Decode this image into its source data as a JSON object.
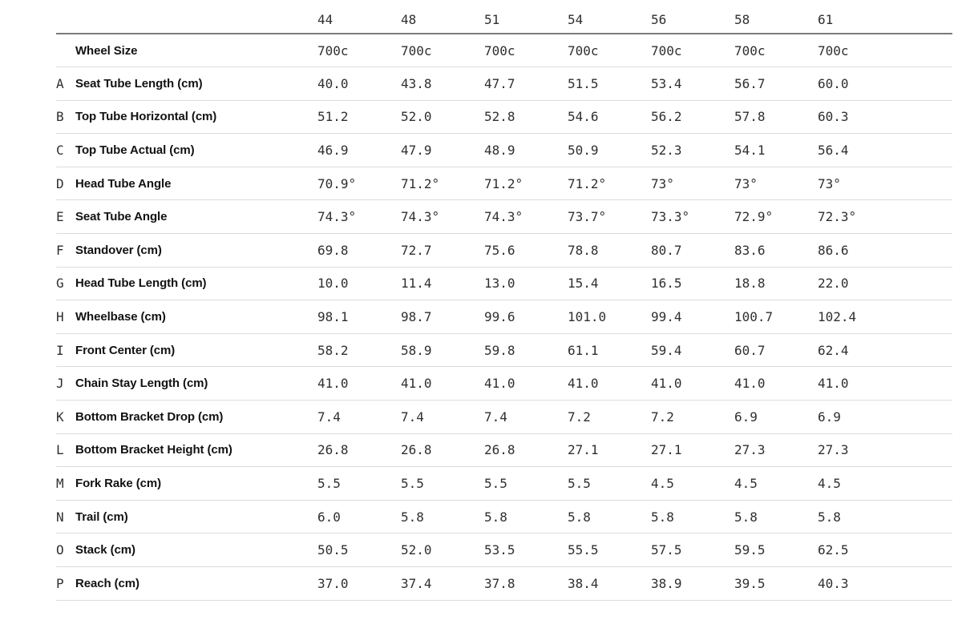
{
  "table": {
    "sizes": [
      "44",
      "48",
      "51",
      "54",
      "56",
      "58",
      "61"
    ],
    "rows": [
      {
        "letter": "",
        "label": "Wheel Size",
        "values": [
          "700c",
          "700c",
          "700c",
          "700c",
          "700c",
          "700c",
          "700c"
        ]
      },
      {
        "letter": "A",
        "label": "Seat Tube Length (cm)",
        "values": [
          "40.0",
          "43.8",
          "47.7",
          "51.5",
          "53.4",
          "56.7",
          "60.0"
        ]
      },
      {
        "letter": "B",
        "label": "Top Tube Horizontal (cm)",
        "values": [
          "51.2",
          "52.0",
          "52.8",
          "54.6",
          "56.2",
          "57.8",
          "60.3"
        ]
      },
      {
        "letter": "C",
        "label": "Top Tube Actual (cm)",
        "values": [
          "46.9",
          "47.9",
          "48.9",
          "50.9",
          "52.3",
          "54.1",
          "56.4"
        ]
      },
      {
        "letter": "D",
        "label": "Head Tube Angle",
        "values": [
          "70.9°",
          "71.2°",
          "71.2°",
          "71.2°",
          "73°",
          "73°",
          "73°"
        ]
      },
      {
        "letter": "E",
        "label": "Seat Tube Angle",
        "values": [
          "74.3°",
          "74.3°",
          "74.3°",
          "73.7°",
          "73.3°",
          "72.9°",
          "72.3°"
        ]
      },
      {
        "letter": "F",
        "label": "Standover (cm)",
        "values": [
          "69.8",
          "72.7",
          "75.6",
          "78.8",
          "80.7",
          "83.6",
          "86.6"
        ]
      },
      {
        "letter": "G",
        "label": "Head Tube Length (cm)",
        "values": [
          "10.0",
          "11.4",
          "13.0",
          "15.4",
          "16.5",
          "18.8",
          "22.0"
        ]
      },
      {
        "letter": "H",
        "label": "Wheelbase (cm)",
        "values": [
          "98.1",
          "98.7",
          "99.6",
          "101.0",
          "99.4",
          "100.7",
          "102.4"
        ]
      },
      {
        "letter": "I",
        "label": "Front Center (cm)",
        "values": [
          "58.2",
          "58.9",
          "59.8",
          "61.1",
          "59.4",
          "60.7",
          "62.4"
        ]
      },
      {
        "letter": "J",
        "label": "Chain Stay Length (cm)",
        "values": [
          "41.0",
          "41.0",
          "41.0",
          "41.0",
          "41.0",
          "41.0",
          "41.0"
        ]
      },
      {
        "letter": "K",
        "label": "Bottom Bracket Drop (cm)",
        "values": [
          "7.4",
          "7.4",
          "7.4",
          "7.2",
          "7.2",
          "6.9",
          "6.9"
        ]
      },
      {
        "letter": "L",
        "label": "Bottom Bracket Height (cm)",
        "values": [
          "26.8",
          "26.8",
          "26.8",
          "27.1",
          "27.1",
          "27.3",
          "27.3"
        ]
      },
      {
        "letter": "M",
        "label": "Fork Rake (cm)",
        "values": [
          "5.5",
          "5.5",
          "5.5",
          "5.5",
          "4.5",
          "4.5",
          "4.5"
        ]
      },
      {
        "letter": "N",
        "label": "Trail (cm)",
        "values": [
          "6.0",
          "5.8",
          "5.8",
          "5.8",
          "5.8",
          "5.8",
          "5.8"
        ]
      },
      {
        "letter": "O",
        "label": "Stack (cm)",
        "values": [
          "50.5",
          "52.0",
          "53.5",
          "55.5",
          "57.5",
          "59.5",
          "62.5"
        ]
      },
      {
        "letter": "P",
        "label": "Reach (cm)",
        "values": [
          "37.0",
          "37.4",
          "37.8",
          "38.4",
          "38.9",
          "39.5",
          "40.3"
        ]
      }
    ],
    "colors": {
      "header_border": "#7a7a7a",
      "row_border": "#dcdcdc",
      "label_text": "#121212",
      "value_text": "#2f2f2f"
    }
  }
}
